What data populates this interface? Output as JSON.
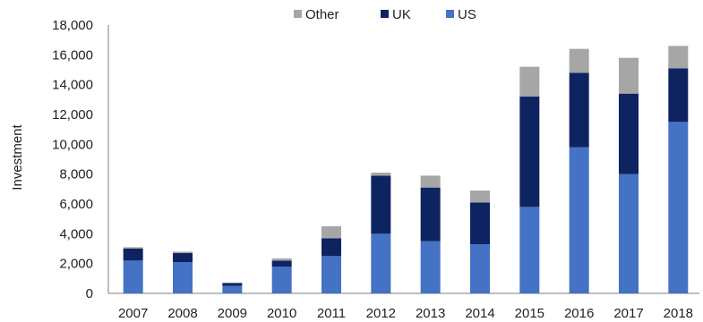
{
  "chart_data": {
    "type": "bar",
    "stacked": true,
    "ylabel": "Investment",
    "ylim": [
      0,
      18000
    ],
    "ytick_step": 2000,
    "grid": false,
    "legend_position": "top",
    "categories": [
      "2007",
      "2008",
      "2009",
      "2010",
      "2011",
      "2012",
      "2013",
      "2014",
      "2015",
      "2016",
      "2017",
      "2018"
    ],
    "series": [
      {
        "name": "US",
        "color": "#4472C4",
        "values": [
          2200,
          2100,
          500,
          1800,
          2500,
          4000,
          3500,
          3300,
          5800,
          9800,
          8000,
          11500
        ]
      },
      {
        "name": "UK",
        "color": "#0D2461",
        "values": [
          800,
          600,
          200,
          400,
          1200,
          3900,
          3600,
          2800,
          7400,
          5000,
          5400,
          3600
        ]
      },
      {
        "name": "Other",
        "color": "#A6A6A6",
        "values": [
          100,
          100,
          0,
          150,
          800,
          200,
          800,
          800,
          2000,
          1600,
          2400,
          1500
        ]
      }
    ]
  }
}
